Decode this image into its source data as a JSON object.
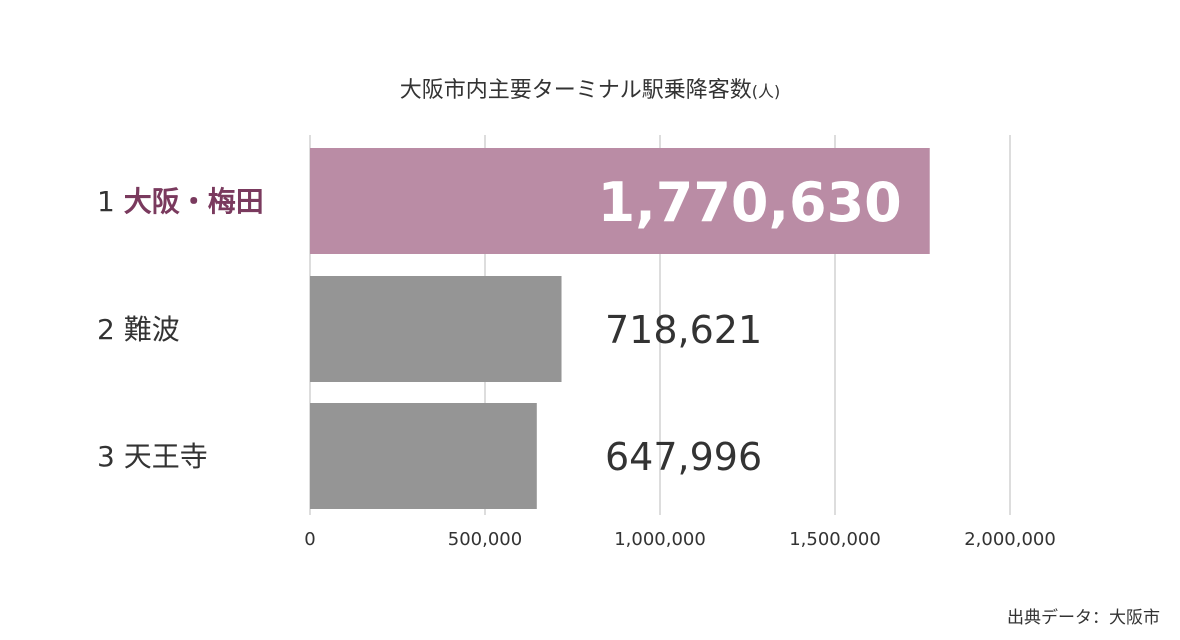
{
  "chart_data": {
    "type": "bar",
    "orientation": "horizontal",
    "title": "大阪市内主要ターミナル駅乗降客数",
    "unit": "(人)",
    "categories": [
      {
        "rank": "1",
        "name": "大阪・梅田",
        "value": 1770630,
        "value_label": "1,770,630",
        "highlight": true
      },
      {
        "rank": "2",
        "name": "難波",
        "value": 718621,
        "value_label": "718,621",
        "highlight": false
      },
      {
        "rank": "3",
        "name": "天王寺",
        "value": 647996,
        "value_label": "647,996",
        "highlight": false
      }
    ],
    "xlim": [
      0,
      2000000
    ],
    "xticks": [
      {
        "value": 0,
        "label": "0"
      },
      {
        "value": 500000,
        "label": "500,000"
      },
      {
        "value": 1000000,
        "label": "1,000,000"
      },
      {
        "value": 1500000,
        "label": "1,500,000"
      },
      {
        "value": 2000000,
        "label": "2,000,000"
      }
    ],
    "grid": true,
    "legend": "none",
    "colors": {
      "highlight_bar": "#ba8ca5",
      "highlight_label": "#7a3a5e",
      "bar": "#959595",
      "grid": "#dddddd",
      "text": "#333333",
      "highlight_value_text": "#ffffff"
    }
  },
  "source": "出典データ：大阪市"
}
